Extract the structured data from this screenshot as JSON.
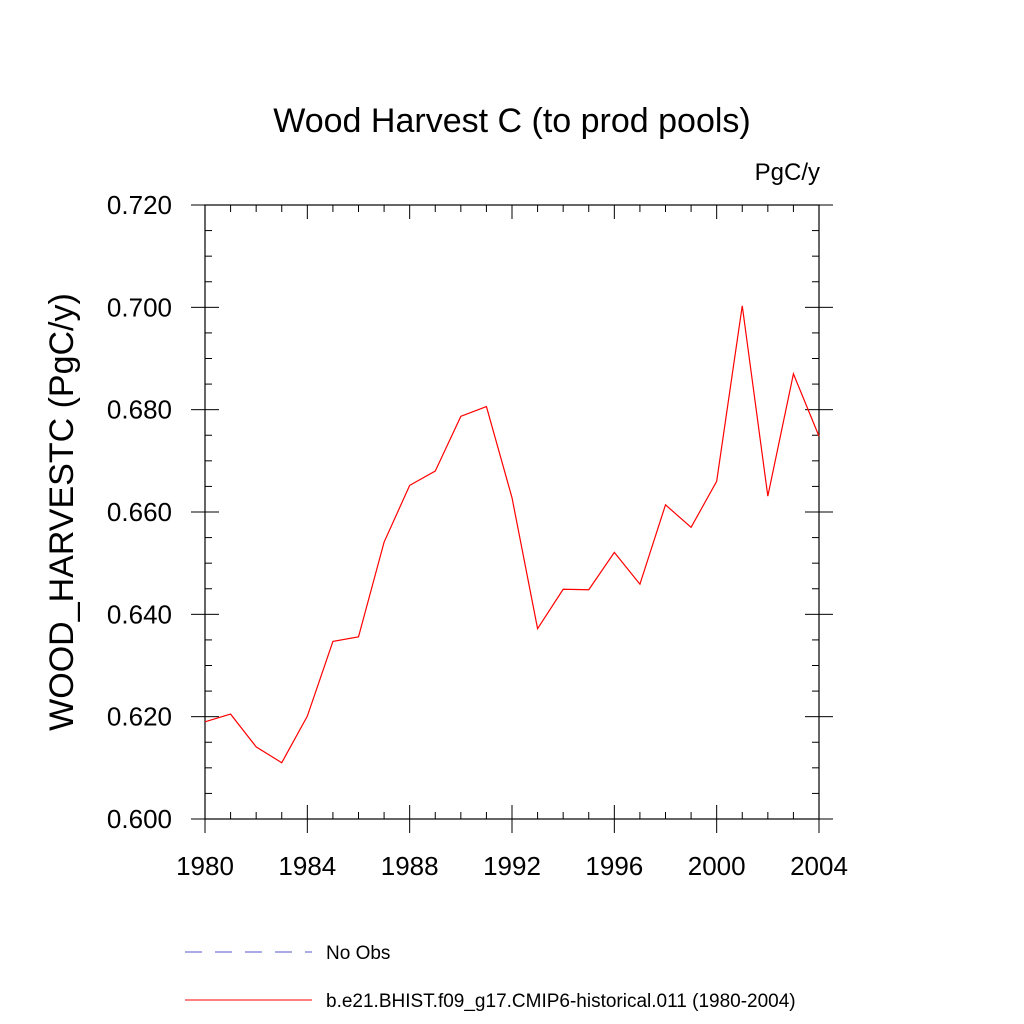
{
  "chart_data": {
    "type": "line",
    "title": "Wood Harvest C (to prod pools)",
    "units_label": "PgC/y",
    "ylabel": "WOOD_HARVESTC  (PgC/y)",
    "xlabel": "",
    "xlim": [
      1980,
      2004
    ],
    "ylim": [
      0.6,
      0.72
    ],
    "x_ticks": [
      "1980",
      "1984",
      "1988",
      "1992",
      "1996",
      "2000",
      "2004"
    ],
    "y_ticks": [
      "0.600",
      "0.620",
      "0.640",
      "0.660",
      "0.680",
      "0.700",
      "0.720"
    ],
    "grid": false,
    "legend_position": "bottom",
    "series": [
      {
        "name": "No Obs",
        "color": "#5555cc",
        "dash": "dashed",
        "x": [],
        "values": []
      },
      {
        "name": "b.e21.BHIST.f09_g17.CMIP6-historical.011 (1980-2004)",
        "color": "#ff0000",
        "dash": "solid",
        "x": [
          1980,
          1981,
          1982,
          1983,
          1984,
          1985,
          1986,
          1987,
          1988,
          1989,
          1990,
          1991,
          1992,
          1993,
          1994,
          1995,
          1996,
          1997,
          1998,
          1999,
          2000,
          2001,
          2002,
          2003,
          2004
        ],
        "values": [
          0.619,
          0.6205,
          0.6141,
          0.611,
          0.6201,
          0.6347,
          0.6356,
          0.6541,
          0.6652,
          0.668,
          0.6787,
          0.6806,
          0.6628,
          0.6372,
          0.6449,
          0.6448,
          0.6521,
          0.6459,
          0.6614,
          0.657,
          0.666,
          0.7003,
          0.6631,
          0.687,
          0.6748
        ]
      }
    ]
  }
}
